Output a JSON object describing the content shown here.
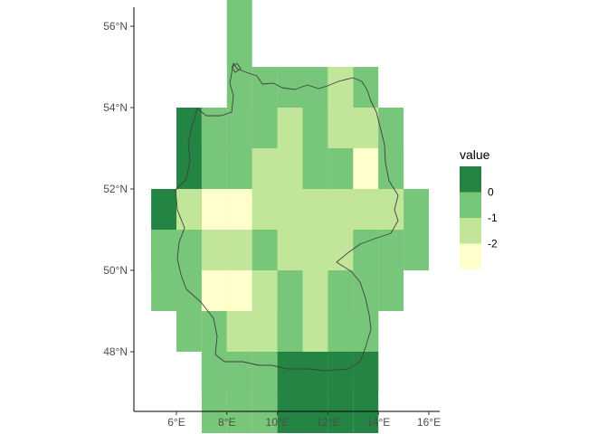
{
  "chart_data": {
    "type": "heatmap",
    "title": "",
    "xlabel": "",
    "ylabel": "",
    "xlim": [
      4.5,
      16.5
    ],
    "ylim": [
      46.5,
      56.5
    ],
    "grid": false,
    "x_ticks": [
      {
        "value": 6,
        "label": "6°E"
      },
      {
        "value": 8,
        "label": "8°E"
      },
      {
        "value": 10,
        "label": "10°E"
      },
      {
        "value": 12,
        "label": "12°E"
      },
      {
        "value": 14,
        "label": "14°E"
      },
      {
        "value": 16,
        "label": "16°E"
      }
    ],
    "y_ticks": [
      {
        "value": 48,
        "label": "48°N"
      },
      {
        "value": 50,
        "label": "50°N"
      },
      {
        "value": 52,
        "label": "52°N"
      },
      {
        "value": 54,
        "label": "54°N"
      },
      {
        "value": 56,
        "label": "56°N"
      }
    ],
    "cell_size_deg": {
      "lon": 1,
      "lat": 2
    },
    "fill_scale": [
      {
        "value": 1,
        "color": "#238443"
      },
      {
        "value": 0,
        "color": "#78c679"
      },
      {
        "value": -1,
        "color": "#c2e699"
      },
      {
        "value": -2,
        "color": "#ffffcc"
      }
    ],
    "legend": {
      "title": "value",
      "position": "right",
      "labels": [
        "0",
        "-1",
        "-2"
      ]
    },
    "overlay": "Germany border outline",
    "cells": [
      {
        "lon": 8.5,
        "lat": 56,
        "value": 0
      },
      {
        "lon": 8.5,
        "lat": 54,
        "value": 0
      },
      {
        "lon": 9.5,
        "lat": 54,
        "value": 0
      },
      {
        "lon": 10.5,
        "lat": 54,
        "value": 0
      },
      {
        "lon": 11.5,
        "lat": 54,
        "value": 0
      },
      {
        "lon": 12.5,
        "lat": 54,
        "value": -1
      },
      {
        "lon": 13.5,
        "lat": 54,
        "value": 0
      },
      {
        "lon": 6.5,
        "lat": 53,
        "value": 1
      },
      {
        "lon": 7.5,
        "lat": 53,
        "value": 0
      },
      {
        "lon": 8.5,
        "lat": 53,
        "value": 0
      },
      {
        "lon": 9.5,
        "lat": 53,
        "value": 0
      },
      {
        "lon": 10.5,
        "lat": 53,
        "value": -1
      },
      {
        "lon": 11.5,
        "lat": 53,
        "value": 0
      },
      {
        "lon": 12.5,
        "lat": 53,
        "value": -1
      },
      {
        "lon": 13.5,
        "lat": 53,
        "value": -1
      },
      {
        "lon": 14.5,
        "lat": 53,
        "value": 0
      },
      {
        "lon": 6.5,
        "lat": 52,
        "value": 1
      },
      {
        "lon": 7.5,
        "lat": 52,
        "value": 0
      },
      {
        "lon": 8.5,
        "lat": 52,
        "value": 0
      },
      {
        "lon": 9.5,
        "lat": 52,
        "value": -1
      },
      {
        "lon": 10.5,
        "lat": 52,
        "value": -1
      },
      {
        "lon": 11.5,
        "lat": 52,
        "value": 0
      },
      {
        "lon": 12.5,
        "lat": 52,
        "value": 0
      },
      {
        "lon": 13.5,
        "lat": 52,
        "value": -2
      },
      {
        "lon": 14.5,
        "lat": 52,
        "value": 0
      },
      {
        "lon": 5.5,
        "lat": 51,
        "value": 1
      },
      {
        "lon": 6.5,
        "lat": 51,
        "value": -1
      },
      {
        "lon": 7.5,
        "lat": 51,
        "value": -2
      },
      {
        "lon": 8.5,
        "lat": 51,
        "value": -2
      },
      {
        "lon": 9.5,
        "lat": 51,
        "value": -1
      },
      {
        "lon": 10.5,
        "lat": 51,
        "value": -1
      },
      {
        "lon": 11.5,
        "lat": 51,
        "value": -1
      },
      {
        "lon": 12.5,
        "lat": 51,
        "value": -1
      },
      {
        "lon": 13.5,
        "lat": 51,
        "value": -1
      },
      {
        "lon": 14.5,
        "lat": 51,
        "value": -1
      },
      {
        "lon": 15.5,
        "lat": 51,
        "value": 0
      },
      {
        "lon": 5.5,
        "lat": 50,
        "value": 0
      },
      {
        "lon": 6.5,
        "lat": 50,
        "value": 0
      },
      {
        "lon": 7.5,
        "lat": 50,
        "value": -1
      },
      {
        "lon": 8.5,
        "lat": 50,
        "value": -1
      },
      {
        "lon": 9.5,
        "lat": 50,
        "value": 0
      },
      {
        "lon": 10.5,
        "lat": 50,
        "value": -1
      },
      {
        "lon": 11.5,
        "lat": 50,
        "value": -1
      },
      {
        "lon": 12.5,
        "lat": 50,
        "value": -1
      },
      {
        "lon": 13.5,
        "lat": 50,
        "value": 0
      },
      {
        "lon": 14.5,
        "lat": 50,
        "value": 0
      },
      {
        "lon": 6.5,
        "lat": 49,
        "value": 0
      },
      {
        "lon": 7.5,
        "lat": 49,
        "value": -2
      },
      {
        "lon": 8.5,
        "lat": 49,
        "value": -2
      },
      {
        "lon": 9.5,
        "lat": 49,
        "value": -1
      },
      {
        "lon": 10.5,
        "lat": 49,
        "value": 0
      },
      {
        "lon": 11.5,
        "lat": 49,
        "value": -1
      },
      {
        "lon": 12.5,
        "lat": 49,
        "value": 0
      },
      {
        "lon": 13.5,
        "lat": 49,
        "value": 0
      },
      {
        "lon": 7.5,
        "lat": 48,
        "value": 0
      },
      {
        "lon": 8.5,
        "lat": 48,
        "value": -1
      },
      {
        "lon": 9.5,
        "lat": 48,
        "value": -1
      },
      {
        "lon": 10.5,
        "lat": 48,
        "value": 0
      },
      {
        "lon": 11.5,
        "lat": 48,
        "value": -1
      },
      {
        "lon": 12.5,
        "lat": 48,
        "value": 0
      },
      {
        "lon": 13.5,
        "lat": 48,
        "value": 0
      },
      {
        "lon": 7.5,
        "lat": 47,
        "value": 0
      },
      {
        "lon": 8.5,
        "lat": 47,
        "value": 0
      },
      {
        "lon": 9.5,
        "lat": 47,
        "value": 0
      },
      {
        "lon": 10.5,
        "lat": 47,
        "value": 1
      },
      {
        "lon": 11.5,
        "lat": 47,
        "value": 1
      },
      {
        "lon": 12.5,
        "lat": 47,
        "value": 1
      },
      {
        "lon": 13.5,
        "lat": 47,
        "value": 1
      }
    ]
  }
}
